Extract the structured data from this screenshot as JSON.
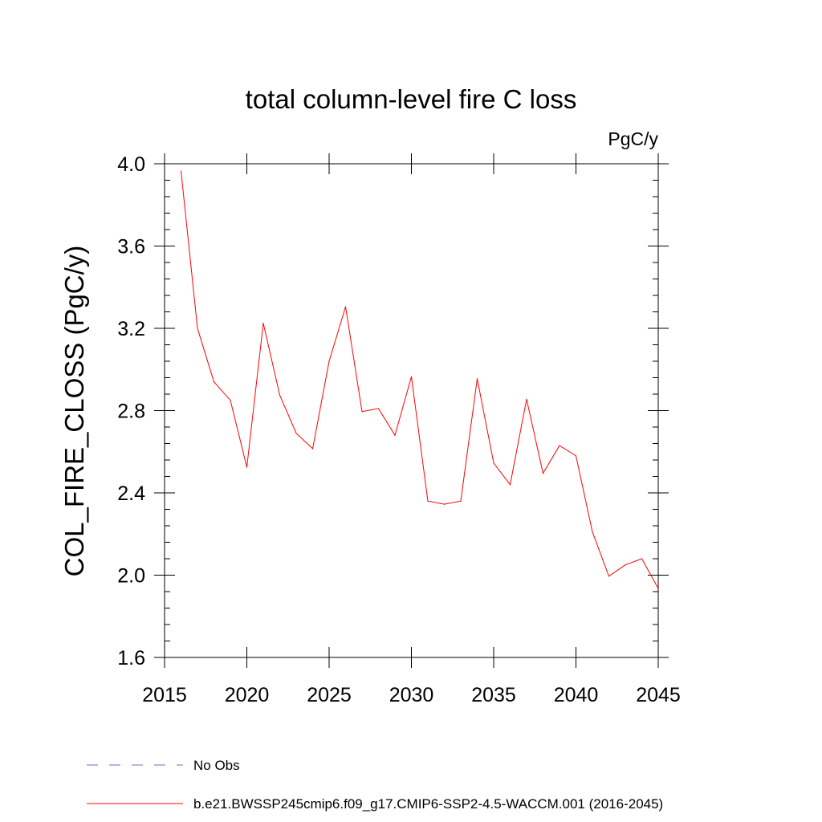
{
  "chart_data": {
    "type": "line",
    "title": "total column-level fire C loss",
    "units_label": "PgC/y",
    "xlabel": "",
    "ylabel": "COL_FIRE_CLOSS  (PgC/y)",
    "xlim": [
      2015,
      2045
    ],
    "ylim": [
      1.6,
      4.0
    ],
    "x_ticks": [
      2015,
      2020,
      2025,
      2030,
      2035,
      2040,
      2045
    ],
    "x_tick_labels": [
      "2015",
      "2020",
      "2025",
      "2030",
      "2035",
      "2040",
      "2045"
    ],
    "y_ticks": [
      1.6,
      2.0,
      2.4,
      2.8,
      3.2,
      3.6,
      4.0
    ],
    "y_tick_labels": [
      "1.6",
      "2.0",
      "2.4",
      "2.8",
      "3.2",
      "3.6",
      "4.0"
    ],
    "grid": false,
    "legend_position": "bottom",
    "series": [
      {
        "name": "b.e21.BWSSP245cmip6.f09_g17.CMIP6-SSP2-4.5-WACCM.001 (2016-2045)",
        "color": "#ff0000",
        "style": "solid",
        "x": [
          2016,
          2017,
          2018,
          2019,
          2020,
          2021,
          2022,
          2023,
          2024,
          2025,
          2026,
          2027,
          2028,
          2029,
          2030,
          2031,
          2032,
          2033,
          2034,
          2035,
          2036,
          2037,
          2038,
          2039,
          2040,
          2041,
          2042,
          2043,
          2044,
          2045
        ],
        "values": [
          3.965,
          3.2,
          2.94,
          2.85,
          2.525,
          3.225,
          2.875,
          2.69,
          2.615,
          3.04,
          3.305,
          2.795,
          2.81,
          2.68,
          2.965,
          2.36,
          2.345,
          2.36,
          2.955,
          2.545,
          2.44,
          2.855,
          2.495,
          2.63,
          2.58,
          2.21,
          1.995,
          2.05,
          2.08,
          1.935
        ]
      }
    ],
    "legend": [
      {
        "label": "No Obs",
        "color": "#7b68c8",
        "style": "dashed"
      },
      {
        "label": "b.e21.BWSSP245cmip6.f09_g17.CMIP6-SSP2-4.5-WACCM.001 (2016-2045)",
        "color": "#ff0000",
        "style": "solid"
      }
    ]
  }
}
